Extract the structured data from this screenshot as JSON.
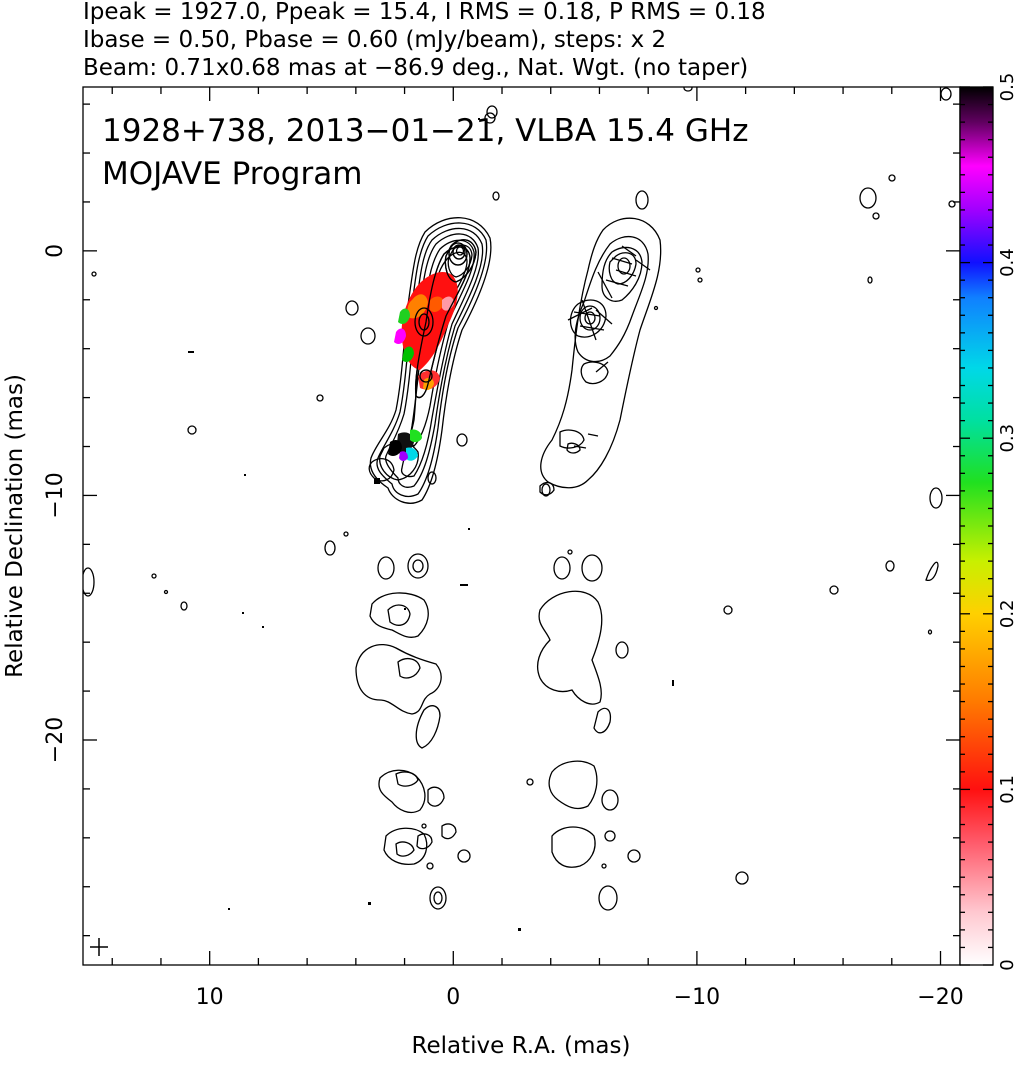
{
  "header": {
    "line1": "Ipeak = 1927.0, Ppeak = 15.4, I RMS = 0.18, P RMS = 0.18",
    "line2": "Ibase = 0.50, Pbase = 0.60 (mJy/beam), steps: x 2",
    "line3": "Beam: 0.71x0.68 mas at −86.9 deg., Nat. Wgt. (no taper)"
  },
  "plot": {
    "title_line1": "1928+738, 2013−01−21, VLBA 15.4 GHz",
    "title_line2": "MOJAVE Program"
  },
  "chart_data": {
    "type": "contour",
    "xlabel": "Relative R.A. (mas)",
    "ylabel": "Relative Declination (mas)",
    "xlim": [
      15.2,
      -20.8
    ],
    "ylim": [
      -29.2,
      6.7
    ],
    "x_ticks": [
      10,
      0,
      -10,
      -20
    ],
    "x_tick_labels": [
      "10",
      "0",
      "−10",
      "−20"
    ],
    "y_ticks": [
      0,
      -10,
      -20
    ],
    "y_tick_labels": [
      "0",
      "−10",
      "−20"
    ],
    "colorbar": {
      "range": [
        0,
        0.5
      ],
      "ticks": [
        0,
        0.1,
        0.2,
        0.3,
        0.4,
        0.5
      ],
      "tick_labels": [
        "0",
        "0.1",
        "0.2",
        "0.3",
        "0.4",
        "0.5"
      ],
      "colors": [
        "#ffffff",
        "#ff9aa6",
        "#ff1a1a",
        "#ff8c00",
        "#f5e600",
        "#2ee02e",
        "#00d8e8",
        "#1020ff",
        "#b000ff",
        "#ff00ff",
        "#000000"
      ]
    },
    "ipeak_mjy_per_beam": 1927.0,
    "ppeak_mjy_per_beam": 15.4,
    "i_rms": 0.18,
    "p_rms": 0.18,
    "ibase": 0.5,
    "pbase": 0.6,
    "contour_step_factor": 2,
    "beam": {
      "major_mas": 0.71,
      "minor_mas": 0.68,
      "pa_deg": -86.9
    },
    "core_ra_mas": 0.0,
    "core_dec_mas": 0.0,
    "jet_features": [
      {
        "ra": 0.0,
        "dec": 0.0,
        "level": "peak"
      },
      {
        "ra": 1.5,
        "dec": -3.0,
        "level": "high"
      },
      {
        "ra": 1.2,
        "dec": -5.0,
        "level": "medium"
      },
      {
        "ra": 2.0,
        "dec": -8.0,
        "level": "low"
      }
    ]
  }
}
